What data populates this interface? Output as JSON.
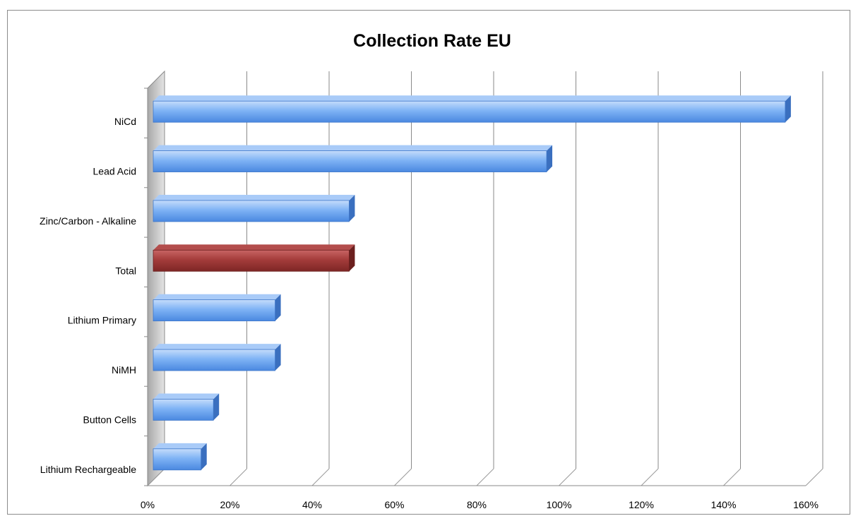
{
  "chart_data": {
    "type": "bar",
    "orientation": "horizontal",
    "style": "3d",
    "title": "Collection Rate EU",
    "categories": [
      "NiCd",
      "Lead Acid",
      "Zinc/Carbon - Alkaline",
      "Total",
      "Lithium  Primary",
      "NiMH",
      "Button  Cells",
      "Lithium  Rechargeable"
    ],
    "values": [
      1.55,
      0.97,
      0.49,
      0.49,
      0.31,
      0.31,
      0.16,
      0.13
    ],
    "xlim": [
      0,
      1.6
    ],
    "x_ticks": [
      0,
      0.2,
      0.4,
      0.6,
      0.8,
      1.0,
      1.2,
      1.4,
      1.6
    ],
    "x_tick_labels": [
      "0%",
      "20%",
      "40%",
      "60%",
      "80%",
      "100%",
      "120%",
      "140%",
      "160%"
    ],
    "highlight_category": "Total",
    "grid": true,
    "legend": "none",
    "colors": {
      "bar": "#5b9bf0",
      "highlight": "#9a3433",
      "grid": "#8a8a8a",
      "wall": "#c8c8c8"
    }
  }
}
